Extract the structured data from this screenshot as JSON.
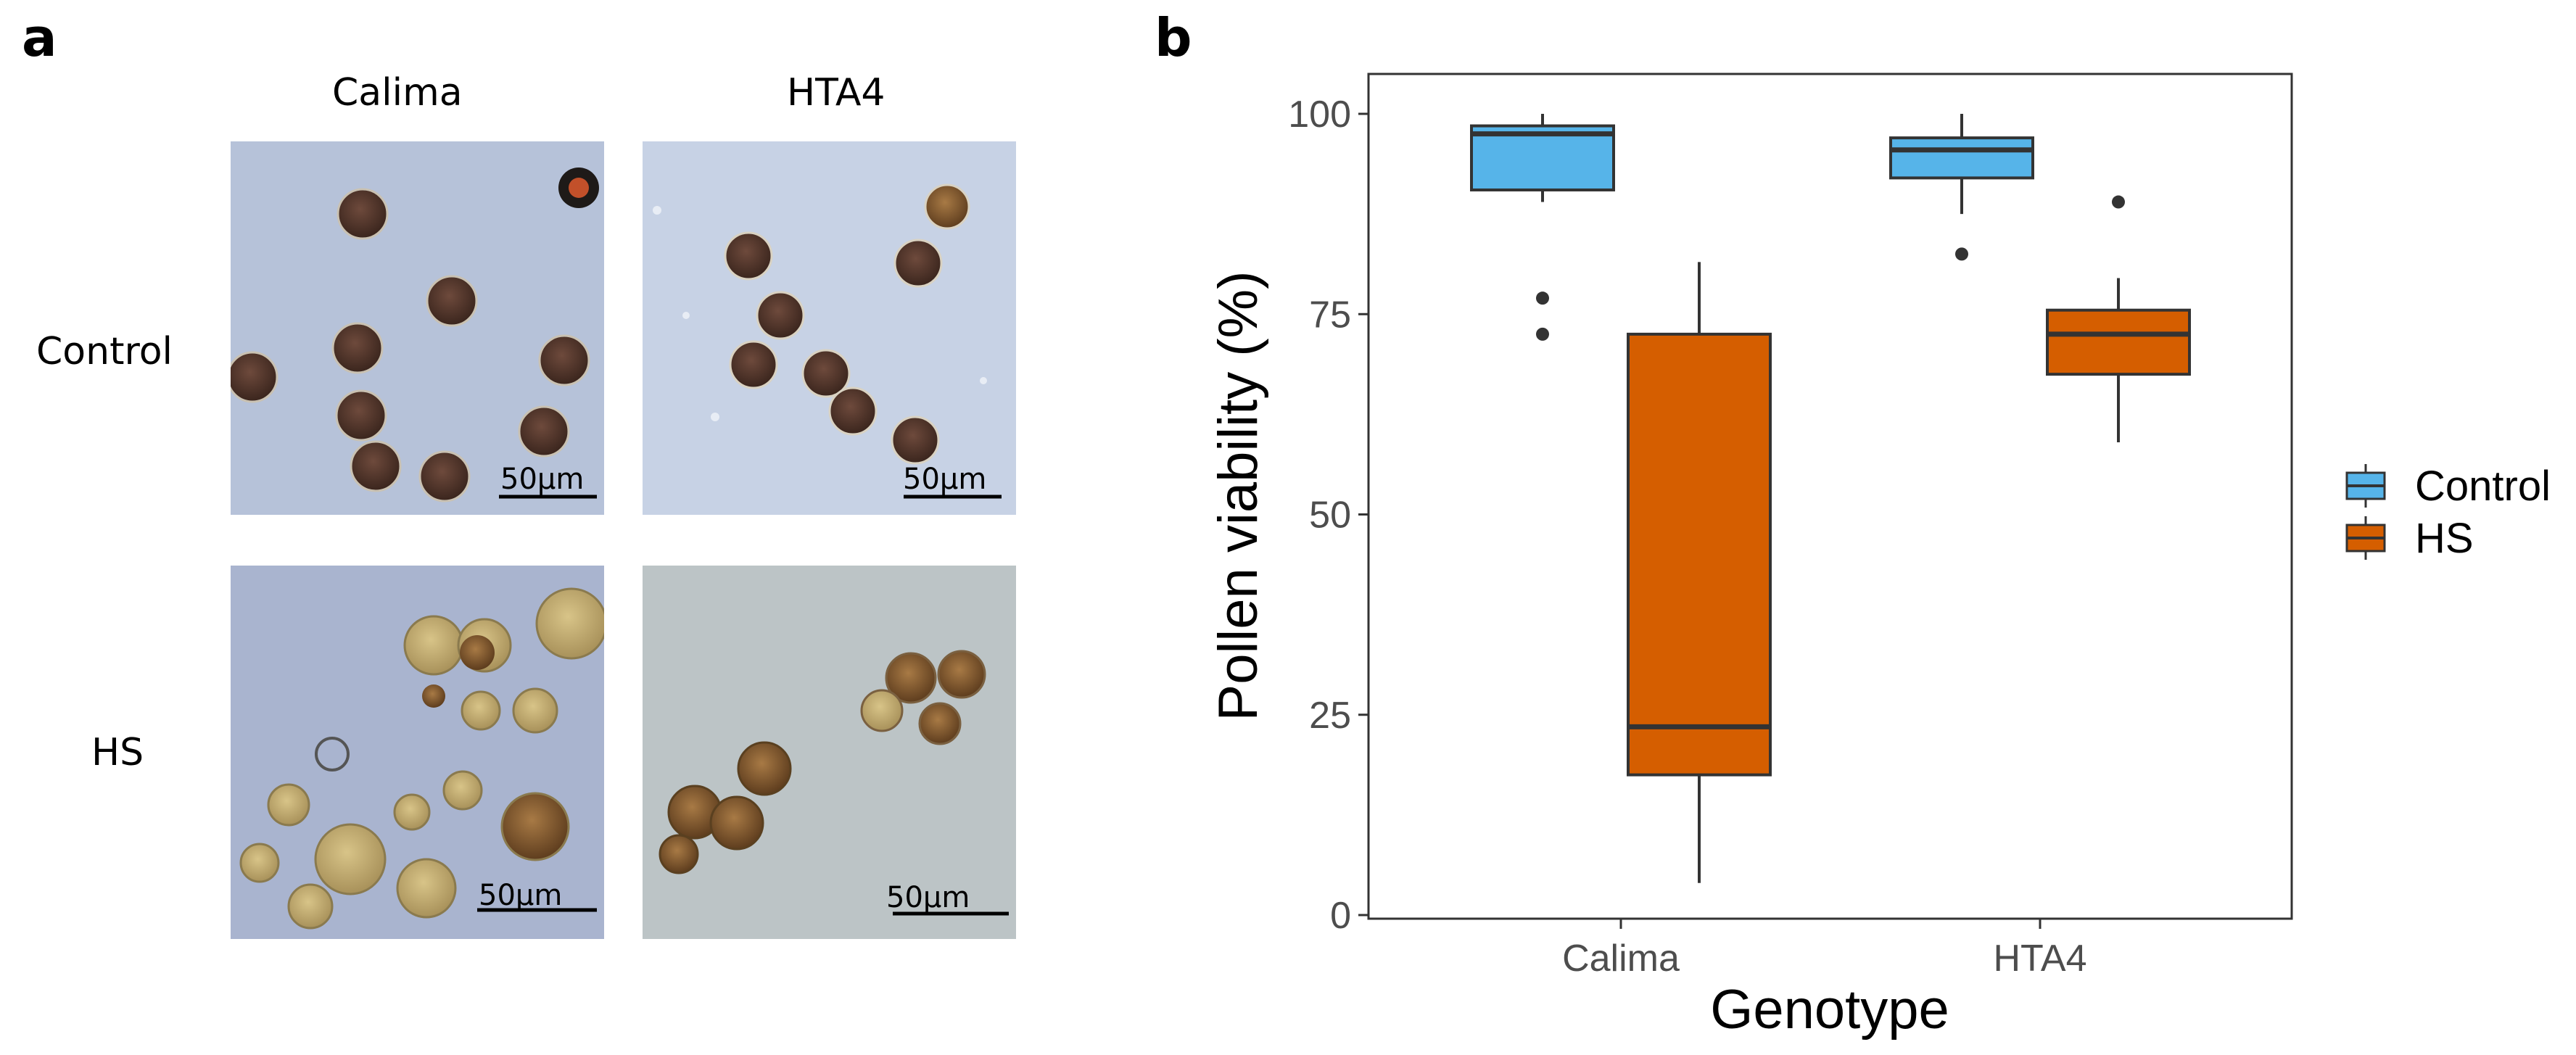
{
  "panel_a": {
    "letter": "a",
    "columns": [
      "Calima",
      "HTA4"
    ],
    "rows": [
      "Control",
      "HS"
    ],
    "scale_bar_label": "50µm"
  },
  "panel_b": {
    "letter": "b"
  },
  "chart_data": {
    "type": "boxplot",
    "xlabel": "Genotype",
    "ylabel": "Pollen viability (%)",
    "ylim": [
      0,
      100
    ],
    "yticks": [
      0,
      25,
      50,
      75,
      100
    ],
    "categories": [
      "Calima",
      "HTA4"
    ],
    "legend": {
      "position": "right",
      "entries": [
        "Control",
        "HS"
      ]
    },
    "colors": {
      "Control": "#56B4E9",
      "HS": "#D55E00",
      "line": "#333333"
    },
    "series": [
      {
        "name": "Control",
        "boxes": [
          {
            "category": "Calima",
            "whisker_low": 89,
            "q1": 90.5,
            "median": 97.5,
            "q3": 98.5,
            "whisker_high": 100,
            "outliers": [
              77,
              72.5
            ]
          },
          {
            "category": "HTA4",
            "whisker_low": 87.5,
            "q1": 92,
            "median": 95.5,
            "q3": 97,
            "whisker_high": 100,
            "outliers": [
              82.5
            ]
          }
        ]
      },
      {
        "name": "HS",
        "boxes": [
          {
            "category": "Calima",
            "whisker_low": 4,
            "q1": 17.5,
            "median": 23.5,
            "q3": 72.5,
            "whisker_high": 81.5,
            "outliers": []
          },
          {
            "category": "HTA4",
            "whisker_low": 59,
            "q1": 67.5,
            "median": 72.5,
            "q3": 75.5,
            "whisker_high": 79.5,
            "outliers": [
              89
            ]
          }
        ]
      }
    ]
  }
}
